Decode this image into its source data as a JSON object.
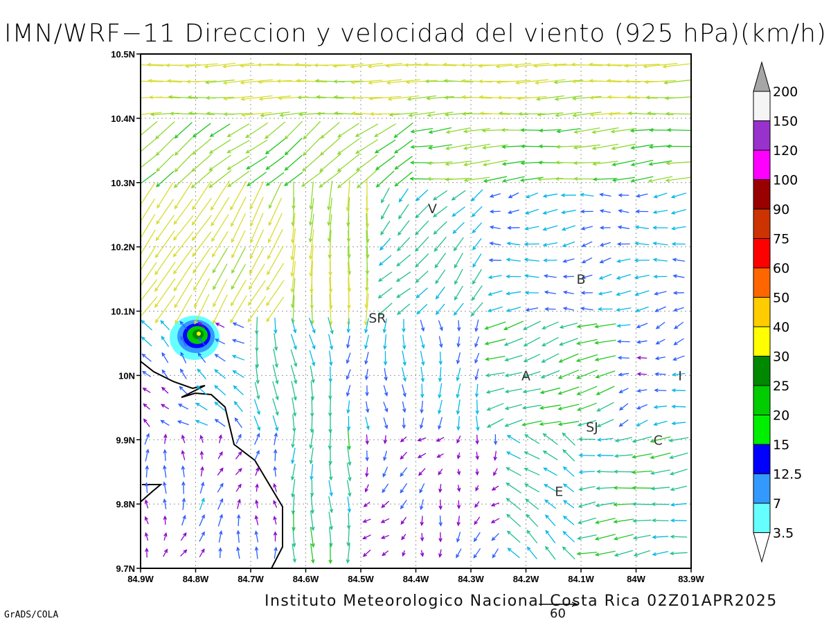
{
  "title": "IMN/WRF−11 Direccion y velocidad del viento (925 hPa)(km/h)",
  "footer": "Instituto Meteorologico Nacional Costa Rica 02Z01APR2025",
  "reference_vector_label": "60",
  "credit": "GrADS/COLA",
  "lat_labels": [
    "10.5N",
    "10.4N",
    "10.3N",
    "10.2N",
    "10.1N",
    "10N",
    "9.9N",
    "9.8N",
    "9.7N"
  ],
  "lon_labels": [
    "84.9W",
    "84.8W",
    "84.7W",
    "84.6W",
    "84.5W",
    "84.4W",
    "84.3W",
    "84.2W",
    "84.1W",
    "84W",
    "83.9W"
  ],
  "colorbar": {
    "labels": [
      "200",
      "150",
      "120",
      "100",
      "90",
      "75",
      "60",
      "50",
      "40",
      "30",
      "25",
      "20",
      "15",
      "12.5",
      "7",
      "3.5"
    ],
    "colors": [
      "#a6a6a6",
      "#f5f5f5",
      "#9932cc",
      "#ff00ff",
      "#990000",
      "#cc3300",
      "#ff0000",
      "#ff6600",
      "#ffcc00",
      "#ffff00",
      "#008800",
      "#00cc00",
      "#00ee00",
      "#0000ff",
      "#3399ff",
      "#66ffff"
    ]
  },
  "cities": [
    {
      "label": "V",
      "lon": -84.37,
      "lat": 10.26
    },
    {
      "label": "B",
      "lon": -84.1,
      "lat": 10.15
    },
    {
      "label": "SR",
      "lon": -84.47,
      "lat": 10.09
    },
    {
      "label": "A",
      "lon": -84.2,
      "lat": 10.0
    },
    {
      "label": "I",
      "lon": -83.92,
      "lat": 10.0
    },
    {
      "label": "SJ",
      "lon": -84.08,
      "lat": 9.92
    },
    {
      "label": "C",
      "lon": -83.96,
      "lat": 9.9
    },
    {
      "label": "E",
      "lon": -84.14,
      "lat": 9.82
    }
  ]
}
